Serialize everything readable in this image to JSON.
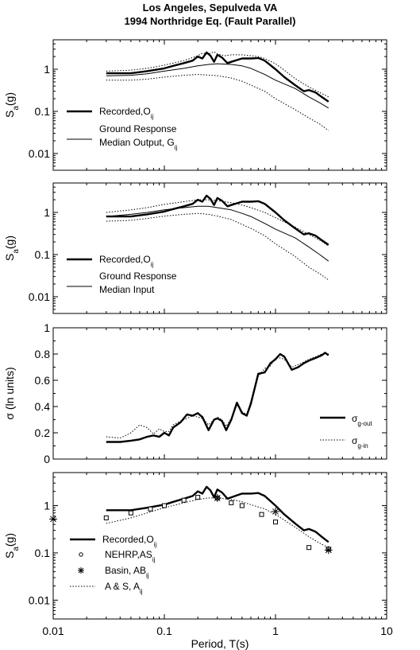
{
  "title_line1": "Los Angeles, Sepulveda VA",
  "title_line2": "1994 Northridge Eq. (Fault Parallel)",
  "chart_data": [
    {
      "type": "line",
      "panel": 1,
      "ylabel": "Sa(g)",
      "yscale": "log",
      "xscale": "log",
      "xlim": [
        0.01,
        10
      ],
      "ylim": [
        0.004,
        5
      ],
      "yticks": [
        "1",
        "0.1",
        "0.01"
      ],
      "ytick_values": [
        1,
        0.1,
        0.01
      ],
      "series": [
        {
          "name": "Recorded,Oij",
          "style": "thick",
          "x": [
            0.03,
            0.05,
            0.07,
            0.1,
            0.12,
            0.15,
            0.18,
            0.2,
            0.22,
            0.24,
            0.26,
            0.28,
            0.3,
            0.33,
            0.37,
            0.4,
            0.45,
            0.5,
            0.6,
            0.7,
            0.8,
            1,
            1.2,
            1.5,
            1.8,
            2,
            2.3,
            2.6,
            3
          ],
          "y": [
            0.8,
            0.8,
            0.9,
            1.05,
            1.2,
            1.4,
            1.6,
            2.0,
            1.8,
            2.5,
            2.1,
            1.5,
            2.2,
            1.9,
            1.4,
            1.5,
            1.65,
            1.8,
            1.8,
            1.85,
            1.6,
            1.0,
            0.65,
            0.42,
            0.3,
            0.32,
            0.28,
            0.22,
            0.17
          ]
        },
        {
          "name": "Ground Response Median Output, Gij",
          "style": "thin",
          "x": [
            0.03,
            0.05,
            0.07,
            0.1,
            0.15,
            0.2,
            0.25,
            0.3,
            0.4,
            0.5,
            0.6,
            0.8,
            1,
            1.5,
            2,
            2.5,
            3
          ],
          "y": [
            0.7,
            0.72,
            0.78,
            0.9,
            1.05,
            1.2,
            1.3,
            1.35,
            1.3,
            1.2,
            1.05,
            0.75,
            0.55,
            0.35,
            0.22,
            0.16,
            0.12
          ]
        },
        {
          "series_style": "dotted",
          "x": [
            0.03,
            0.05,
            0.07,
            0.1,
            0.15,
            0.2,
            0.22,
            0.25,
            0.28,
            0.3,
            0.35,
            0.4,
            0.5,
            0.6,
            0.7,
            0.8,
            1,
            1.2,
            1.5,
            2,
            2.5,
            3
          ],
          "y": [
            0.9,
            0.95,
            1.05,
            1.25,
            1.6,
            2.1,
            2.4,
            2.3,
            2.6,
            2.3,
            2.1,
            2.2,
            2.2,
            2.1,
            2.0,
            1.8,
            1.35,
            0.95,
            0.6,
            0.38,
            0.28,
            0.22
          ]
        },
        {
          "series_style": "dotted",
          "x": [
            0.03,
            0.05,
            0.07,
            0.1,
            0.15,
            0.2,
            0.25,
            0.3,
            0.4,
            0.5,
            0.6,
            0.8,
            1,
            1.5,
            2,
            2.5,
            3
          ],
          "y": [
            0.55,
            0.55,
            0.58,
            0.65,
            0.72,
            0.75,
            0.73,
            0.7,
            0.62,
            0.52,
            0.42,
            0.3,
            0.2,
            0.11,
            0.07,
            0.05,
            0.035
          ]
        }
      ],
      "legend": [
        {
          "label": "Recorded,O",
          "sub": "ij",
          "style": "thick"
        },
        {
          "label": "Ground Response",
          "label2": "Median Output, G",
          "sub": "ij",
          "style": "thin"
        }
      ]
    },
    {
      "type": "line",
      "panel": 2,
      "ylabel": "Sa(g)",
      "yscale": "log",
      "xscale": "log",
      "xlim": [
        0.01,
        10
      ],
      "ylim": [
        0.004,
        5
      ],
      "yticks": [
        "1",
        "0.1",
        "0.01"
      ],
      "ytick_values": [
        1,
        0.1,
        0.01
      ],
      "series": [
        {
          "name": "Recorded,Oij",
          "style": "thick",
          "x": [
            0.03,
            0.05,
            0.07,
            0.1,
            0.12,
            0.15,
            0.18,
            0.2,
            0.22,
            0.24,
            0.26,
            0.28,
            0.3,
            0.33,
            0.37,
            0.4,
            0.45,
            0.5,
            0.6,
            0.7,
            0.8,
            1,
            1.2,
            1.5,
            1.8,
            2,
            2.3,
            2.6,
            3
          ],
          "y": [
            0.8,
            0.8,
            0.9,
            1.05,
            1.2,
            1.4,
            1.6,
            2.0,
            1.8,
            2.5,
            2.1,
            1.5,
            2.2,
            1.9,
            1.4,
            1.5,
            1.65,
            1.8,
            1.8,
            1.85,
            1.6,
            1.0,
            0.65,
            0.42,
            0.3,
            0.32,
            0.28,
            0.22,
            0.17
          ]
        },
        {
          "name": "Ground Response Median Input",
          "style": "thin",
          "x": [
            0.03,
            0.05,
            0.07,
            0.1,
            0.15,
            0.2,
            0.25,
            0.3,
            0.4,
            0.5,
            0.6,
            0.8,
            1,
            1.5,
            2,
            2.5,
            3
          ],
          "y": [
            0.8,
            0.9,
            1.0,
            1.15,
            1.3,
            1.4,
            1.4,
            1.3,
            1.15,
            0.95,
            0.8,
            0.55,
            0.4,
            0.25,
            0.15,
            0.1,
            0.07
          ]
        },
        {
          "series_style": "dotted",
          "x": [
            0.03,
            0.05,
            0.07,
            0.1,
            0.15,
            0.2,
            0.25,
            0.3,
            0.4,
            0.5,
            0.6,
            0.8,
            1,
            1.5,
            2,
            2.5,
            3
          ],
          "y": [
            1.0,
            1.15,
            1.3,
            1.55,
            1.8,
            2.0,
            2.0,
            1.9,
            1.7,
            1.5,
            1.3,
            1.0,
            0.75,
            0.45,
            0.3,
            0.22,
            0.16
          ]
        },
        {
          "series_style": "dotted",
          "x": [
            0.03,
            0.05,
            0.07,
            0.1,
            0.15,
            0.2,
            0.25,
            0.3,
            0.4,
            0.5,
            0.6,
            0.8,
            1,
            1.5,
            2,
            2.5,
            3
          ],
          "y": [
            0.62,
            0.65,
            0.72,
            0.82,
            0.9,
            0.95,
            0.9,
            0.82,
            0.68,
            0.52,
            0.42,
            0.28,
            0.18,
            0.09,
            0.05,
            0.035,
            0.025
          ]
        }
      ],
      "legend": [
        {
          "label": "Recorded,O",
          "sub": "ij",
          "style": "thick"
        },
        {
          "label": "Ground Response",
          "label2": "Median Input",
          "style": "thin"
        }
      ]
    },
    {
      "type": "line",
      "panel": 3,
      "ylabel": "σ (ln units)",
      "yscale": "linear",
      "xscale": "log",
      "xlim": [
        0.01,
        10
      ],
      "ylim": [
        0,
        1
      ],
      "yticks": [
        "0",
        "0.2",
        "0.4",
        "0.6",
        "0.8",
        "1"
      ],
      "ytick_values": [
        0,
        0.2,
        0.4,
        0.6,
        0.8,
        1
      ],
      "series": [
        {
          "name": "σg-out",
          "style": "thick",
          "x": [
            0.03,
            0.04,
            0.05,
            0.06,
            0.07,
            0.08,
            0.09,
            0.1,
            0.11,
            0.12,
            0.14,
            0.16,
            0.18,
            0.2,
            0.22,
            0.25,
            0.28,
            0.3,
            0.33,
            0.36,
            0.4,
            0.45,
            0.5,
            0.55,
            0.6,
            0.7,
            0.8,
            0.9,
            1,
            1.1,
            1.2,
            1.4,
            1.6,
            1.8,
            2,
            2.3,
            2.6,
            2.8,
            3
          ],
          "y": [
            0.13,
            0.13,
            0.14,
            0.15,
            0.17,
            0.18,
            0.17,
            0.2,
            0.18,
            0.24,
            0.28,
            0.34,
            0.33,
            0.35,
            0.32,
            0.22,
            0.3,
            0.31,
            0.29,
            0.22,
            0.3,
            0.43,
            0.35,
            0.33,
            0.42,
            0.65,
            0.66,
            0.73,
            0.76,
            0.8,
            0.78,
            0.68,
            0.7,
            0.73,
            0.75,
            0.77,
            0.79,
            0.81,
            0.79
          ]
        },
        {
          "name": "σg-in",
          "style": "dotted",
          "x": [
            0.03,
            0.04,
            0.05,
            0.06,
            0.07,
            0.08,
            0.09,
            0.1,
            0.11,
            0.12,
            0.14,
            0.16,
            0.18,
            0.2,
            0.22,
            0.25,
            0.28,
            0.3,
            0.33,
            0.36,
            0.4,
            0.45,
            0.5,
            0.55,
            0.6,
            0.7,
            0.8,
            0.9,
            1,
            1.1,
            1.2,
            1.4,
            1.6,
            1.8,
            2,
            2.3,
            2.6,
            2.8,
            3
          ],
          "y": [
            0.17,
            0.16,
            0.2,
            0.26,
            0.24,
            0.19,
            0.23,
            0.21,
            0.21,
            0.26,
            0.29,
            0.31,
            0.33,
            0.32,
            0.31,
            0.26,
            0.3,
            0.32,
            0.3,
            0.25,
            0.31,
            0.41,
            0.36,
            0.34,
            0.44,
            0.63,
            0.69,
            0.71,
            0.77,
            0.77,
            0.76,
            0.7,
            0.72,
            0.74,
            0.76,
            0.78,
            0.8,
            0.81,
            0.8
          ]
        }
      ],
      "legend": [
        {
          "label": "σ",
          "sub": "g-out",
          "style": "thick"
        },
        {
          "label": "σ",
          "sub": "g-in",
          "style": "dotted"
        }
      ]
    },
    {
      "type": "line",
      "panel": 4,
      "ylabel": "Sa(g)",
      "xlabel": "Period, T(s)",
      "yscale": "log",
      "xscale": "log",
      "xlim": [
        0.01,
        10
      ],
      "ylim": [
        0.004,
        5
      ],
      "yticks": [
        "1",
        "0.1",
        "0.01"
      ],
      "ytick_values": [
        1,
        0.1,
        0.01
      ],
      "xticks": [
        "0.01",
        "0.1",
        "1",
        "10"
      ],
      "xtick_values": [
        0.01,
        0.1,
        1,
        10
      ],
      "series": [
        {
          "name": "Recorded,Oij",
          "style": "thick",
          "x": [
            0.03,
            0.05,
            0.07,
            0.1,
            0.12,
            0.15,
            0.18,
            0.2,
            0.22,
            0.24,
            0.26,
            0.28,
            0.3,
            0.33,
            0.37,
            0.4,
            0.45,
            0.5,
            0.6,
            0.7,
            0.8,
            1,
            1.2,
            1.5,
            1.8,
            2,
            2.3,
            2.6,
            3
          ],
          "y": [
            0.8,
            0.8,
            0.9,
            1.05,
            1.2,
            1.4,
            1.6,
            2.0,
            1.8,
            2.5,
            2.1,
            1.5,
            2.2,
            1.9,
            1.4,
            1.5,
            1.65,
            1.8,
            1.8,
            1.85,
            1.6,
            1.0,
            0.65,
            0.42,
            0.3,
            0.32,
            0.28,
            0.22,
            0.17
          ]
        },
        {
          "name": "A & S, Aij",
          "style": "dotted",
          "x": [
            0.03,
            0.05,
            0.07,
            0.1,
            0.15,
            0.2,
            0.25,
            0.3,
            0.4,
            0.5,
            0.6,
            0.8,
            1,
            1.5,
            2,
            2.5,
            3
          ],
          "y": [
            0.42,
            0.55,
            0.7,
            0.9,
            1.15,
            1.35,
            1.45,
            1.45,
            1.35,
            1.2,
            1.05,
            0.85,
            0.65,
            0.35,
            0.22,
            0.16,
            0.13
          ]
        }
      ],
      "markers": [
        {
          "name": "NEHRP,ASij",
          "shape": "square",
          "x": [
            0.03,
            0.05,
            0.075,
            0.1,
            0.15,
            0.2,
            0.3,
            0.4,
            0.5,
            0.75,
            1,
            2,
            3
          ],
          "y": [
            0.55,
            0.7,
            0.85,
            1.0,
            1.3,
            1.5,
            1.45,
            1.15,
            1.0,
            0.65,
            0.45,
            0.13,
            0.12
          ]
        },
        {
          "name": "Basin, ABij",
          "shape": "asterisk",
          "x": [
            0.01,
            0.3,
            1,
            3
          ],
          "y": [
            0.52,
            1.45,
            0.75,
            0.115
          ]
        }
      ],
      "legend": [
        {
          "label": "Recorded,O",
          "sub": "ij",
          "style": "thick"
        },
        {
          "label": "NEHRP,AS",
          "sub": "ij",
          "style": "circle-marker"
        },
        {
          "label": "Basin, AB",
          "sub": "ij",
          "style": "asterisk-marker"
        },
        {
          "label": "A & S, A",
          "sub": "ij",
          "style": "dotted"
        }
      ]
    }
  ]
}
